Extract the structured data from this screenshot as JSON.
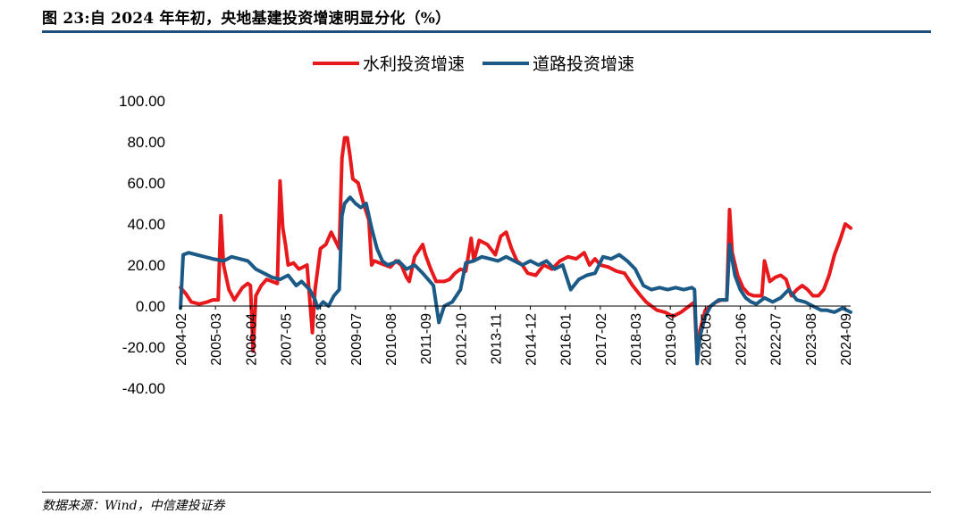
{
  "title": "图 23:自 2024 年年初，央地基建投资增速明显分化（%）",
  "source": "数据来源：Wind，中信建投证券",
  "colors": {
    "water": "#e8191c",
    "road": "#1b5a86",
    "rule": "#1f4e79"
  },
  "chart_data": {
    "type": "line",
    "title": "图 23:自 2024 年年初，央地基建投资增速明显分化（%）",
    "xlabel": "",
    "ylabel": "",
    "ylim": [
      -40,
      100
    ],
    "yticks": [
      "100.00",
      "80.00",
      "60.00",
      "40.00",
      "20.00",
      "0.00",
      "-20.00",
      "-40.00"
    ],
    "x_start": "2004-02",
    "x_end": "2024-11",
    "xticks": [
      "2004-02",
      "2005-03",
      "2006-04",
      "2007-05",
      "2008-06",
      "2009-07",
      "2010-08",
      "2011-09",
      "2012-10",
      "2013-11",
      "2014-12",
      "2016-01",
      "2017-02",
      "2018-03",
      "2019-04",
      "2020-05",
      "2021-06",
      "2022-07",
      "2023-08",
      "2024-09"
    ],
    "legend_position": "top-center",
    "series": [
      {
        "name": "水利投资增速",
        "color": "#e8191c",
        "points": [
          [
            "2004-02",
            9
          ],
          [
            "2004-04",
            6
          ],
          [
            "2004-06",
            2
          ],
          [
            "2004-09",
            1
          ],
          [
            "2004-12",
            2
          ],
          [
            "2005-02",
            3
          ],
          [
            "2005-04",
            3
          ],
          [
            "2005-05",
            44
          ],
          [
            "2005-06",
            20
          ],
          [
            "2005-08",
            8
          ],
          [
            "2005-10",
            3
          ],
          [
            "2006-01",
            9
          ],
          [
            "2006-03",
            11
          ],
          [
            "2006-04",
            10
          ],
          [
            "2006-05",
            -22
          ],
          [
            "2006-06",
            5
          ],
          [
            "2006-08",
            10
          ],
          [
            "2006-10",
            13
          ],
          [
            "2006-12",
            12
          ],
          [
            "2007-02",
            11
          ],
          [
            "2007-03",
            61
          ],
          [
            "2007-04",
            38
          ],
          [
            "2007-05",
            30
          ],
          [
            "2007-06",
            20
          ],
          [
            "2007-08",
            21
          ],
          [
            "2007-10",
            18
          ],
          [
            "2008-01",
            20
          ],
          [
            "2008-03",
            -13
          ],
          [
            "2008-04",
            8
          ],
          [
            "2008-06",
            28
          ],
          [
            "2008-08",
            30
          ],
          [
            "2008-10",
            36
          ],
          [
            "2009-01",
            28
          ],
          [
            "2009-02",
            72
          ],
          [
            "2009-03",
            82
          ],
          [
            "2009-04",
            82
          ],
          [
            "2009-05",
            73
          ],
          [
            "2009-06",
            62
          ],
          [
            "2009-08",
            60
          ],
          [
            "2009-10",
            50
          ],
          [
            "2009-12",
            42
          ],
          [
            "2010-01",
            20
          ],
          [
            "2010-02",
            22
          ],
          [
            "2010-04",
            21
          ],
          [
            "2010-06",
            20
          ],
          [
            "2010-08",
            19
          ],
          [
            "2010-10",
            22
          ],
          [
            "2010-12",
            20
          ],
          [
            "2011-02",
            14
          ],
          [
            "2011-03",
            12
          ],
          [
            "2011-05",
            24
          ],
          [
            "2011-07",
            28
          ],
          [
            "2011-08",
            30
          ],
          [
            "2011-09",
            25
          ],
          [
            "2011-11",
            18
          ],
          [
            "2012-01",
            12
          ],
          [
            "2012-04",
            12
          ],
          [
            "2012-06",
            13
          ],
          [
            "2012-08",
            16
          ],
          [
            "2012-10",
            18
          ],
          [
            "2012-12",
            17
          ],
          [
            "2013-02",
            33
          ],
          [
            "2013-03",
            22
          ],
          [
            "2013-05",
            32
          ],
          [
            "2013-08",
            30
          ],
          [
            "2013-11",
            25
          ],
          [
            "2014-01",
            34
          ],
          [
            "2014-03",
            36
          ],
          [
            "2014-05",
            28
          ],
          [
            "2014-07",
            22
          ],
          [
            "2014-09",
            20
          ],
          [
            "2014-11",
            16
          ],
          [
            "2015-02",
            15
          ],
          [
            "2015-05",
            20
          ],
          [
            "2015-08",
            18
          ],
          [
            "2015-11",
            22
          ],
          [
            "2016-02",
            24
          ],
          [
            "2016-05",
            23
          ],
          [
            "2016-08",
            26
          ],
          [
            "2016-10",
            20
          ],
          [
            "2016-12",
            23
          ],
          [
            "2017-02",
            20
          ],
          [
            "2017-05",
            19
          ],
          [
            "2017-08",
            17
          ],
          [
            "2017-11",
            16
          ],
          [
            "2018-02",
            10
          ],
          [
            "2018-05",
            5
          ],
          [
            "2018-07",
            2
          ],
          [
            "2018-09",
            0
          ],
          [
            "2018-11",
            -2
          ],
          [
            "2019-02",
            -3
          ],
          [
            "2019-05",
            -5
          ],
          [
            "2019-08",
            -3
          ],
          [
            "2019-11",
            0
          ],
          [
            "2020-01",
            2
          ],
          [
            "2020-02",
            -27
          ],
          [
            "2020-03",
            -12
          ],
          [
            "2020-05",
            -2
          ],
          [
            "2020-07",
            0
          ],
          [
            "2020-09",
            2
          ],
          [
            "2020-11",
            3
          ],
          [
            "2021-01",
            3
          ],
          [
            "2021-02",
            47
          ],
          [
            "2021-03",
            26
          ],
          [
            "2021-05",
            15
          ],
          [
            "2021-07",
            9
          ],
          [
            "2021-09",
            6
          ],
          [
            "2021-11",
            5
          ],
          [
            "2022-02",
            5
          ],
          [
            "2022-03",
            22
          ],
          [
            "2022-05",
            12
          ],
          [
            "2022-07",
            14
          ],
          [
            "2022-09",
            15
          ],
          [
            "2022-11",
            13
          ],
          [
            "2023-01",
            5
          ],
          [
            "2023-03",
            8
          ],
          [
            "2023-05",
            10
          ],
          [
            "2023-07",
            8
          ],
          [
            "2023-09",
            5
          ],
          [
            "2023-11",
            5
          ],
          [
            "2024-01",
            8
          ],
          [
            "2024-03",
            15
          ],
          [
            "2024-05",
            25
          ],
          [
            "2024-07",
            32
          ],
          [
            "2024-09",
            40
          ],
          [
            "2024-11",
            38
          ]
        ]
      },
      {
        "name": "道路投资增速",
        "color": "#1b5a86",
        "points": [
          [
            "2004-02",
            -1
          ],
          [
            "2004-03",
            25
          ],
          [
            "2004-05",
            26
          ],
          [
            "2004-08",
            25
          ],
          [
            "2004-11",
            24
          ],
          [
            "2005-02",
            23
          ],
          [
            "2005-06",
            22
          ],
          [
            "2005-09",
            24
          ],
          [
            "2005-12",
            23
          ],
          [
            "2006-03",
            22
          ],
          [
            "2006-06",
            18
          ],
          [
            "2006-09",
            16
          ],
          [
            "2006-12",
            14
          ],
          [
            "2007-03",
            13
          ],
          [
            "2007-06",
            15
          ],
          [
            "2007-09",
            10
          ],
          [
            "2007-11",
            12
          ],
          [
            "2008-02",
            8
          ],
          [
            "2008-04",
            3
          ],
          [
            "2008-05",
            -1
          ],
          [
            "2008-07",
            2
          ],
          [
            "2008-09",
            0
          ],
          [
            "2008-11",
            5
          ],
          [
            "2009-01",
            8
          ],
          [
            "2009-02",
            44
          ],
          [
            "2009-03",
            50
          ],
          [
            "2009-05",
            53
          ],
          [
            "2009-07",
            50
          ],
          [
            "2009-09",
            48
          ],
          [
            "2009-11",
            50
          ],
          [
            "2010-01",
            38
          ],
          [
            "2010-03",
            28
          ],
          [
            "2010-05",
            22
          ],
          [
            "2010-07",
            20
          ],
          [
            "2010-09",
            21
          ],
          [
            "2010-11",
            22
          ],
          [
            "2011-02",
            18
          ],
          [
            "2011-05",
            20
          ],
          [
            "2011-08",
            16
          ],
          [
            "2011-10",
            13
          ],
          [
            "2011-12",
            10
          ],
          [
            "2012-02",
            -8
          ],
          [
            "2012-04",
            0
          ],
          [
            "2012-07",
            2
          ],
          [
            "2012-10",
            8
          ],
          [
            "2012-12",
            21
          ],
          [
            "2013-03",
            22
          ],
          [
            "2013-06",
            24
          ],
          [
            "2013-09",
            23
          ],
          [
            "2013-12",
            22
          ],
          [
            "2014-03",
            24
          ],
          [
            "2014-06",
            22
          ],
          [
            "2014-09",
            20
          ],
          [
            "2014-12",
            22
          ],
          [
            "2015-03",
            20
          ],
          [
            "2015-06",
            22
          ],
          [
            "2015-09",
            18
          ],
          [
            "2015-12",
            20
          ],
          [
            "2016-03",
            8
          ],
          [
            "2016-06",
            13
          ],
          [
            "2016-09",
            15
          ],
          [
            "2016-12",
            16
          ],
          [
            "2017-03",
            24
          ],
          [
            "2017-06",
            23
          ],
          [
            "2017-09",
            25
          ],
          [
            "2017-12",
            22
          ],
          [
            "2018-03",
            18
          ],
          [
            "2018-06",
            10
          ],
          [
            "2018-09",
            8
          ],
          [
            "2018-12",
            9
          ],
          [
            "2019-03",
            8
          ],
          [
            "2019-06",
            9
          ],
          [
            "2019-09",
            8
          ],
          [
            "2019-12",
            9
          ],
          [
            "2020-01",
            8
          ],
          [
            "2020-02",
            -28
          ],
          [
            "2020-03",
            -15
          ],
          [
            "2020-05",
            -5
          ],
          [
            "2020-07",
            0
          ],
          [
            "2020-10",
            3
          ],
          [
            "2021-01",
            3
          ],
          [
            "2021-02",
            30
          ],
          [
            "2021-04",
            15
          ],
          [
            "2021-06",
            8
          ],
          [
            "2021-08",
            4
          ],
          [
            "2021-10",
            2
          ],
          [
            "2021-12",
            1
          ],
          [
            "2022-03",
            4
          ],
          [
            "2022-06",
            2
          ],
          [
            "2022-09",
            4
          ],
          [
            "2022-12",
            8
          ],
          [
            "2023-03",
            3
          ],
          [
            "2023-06",
            2
          ],
          [
            "2023-09",
            0
          ],
          [
            "2023-12",
            -2
          ],
          [
            "2024-02",
            -2
          ],
          [
            "2024-05",
            -3
          ],
          [
            "2024-08",
            -1
          ],
          [
            "2024-11",
            -3
          ]
        ]
      }
    ]
  }
}
